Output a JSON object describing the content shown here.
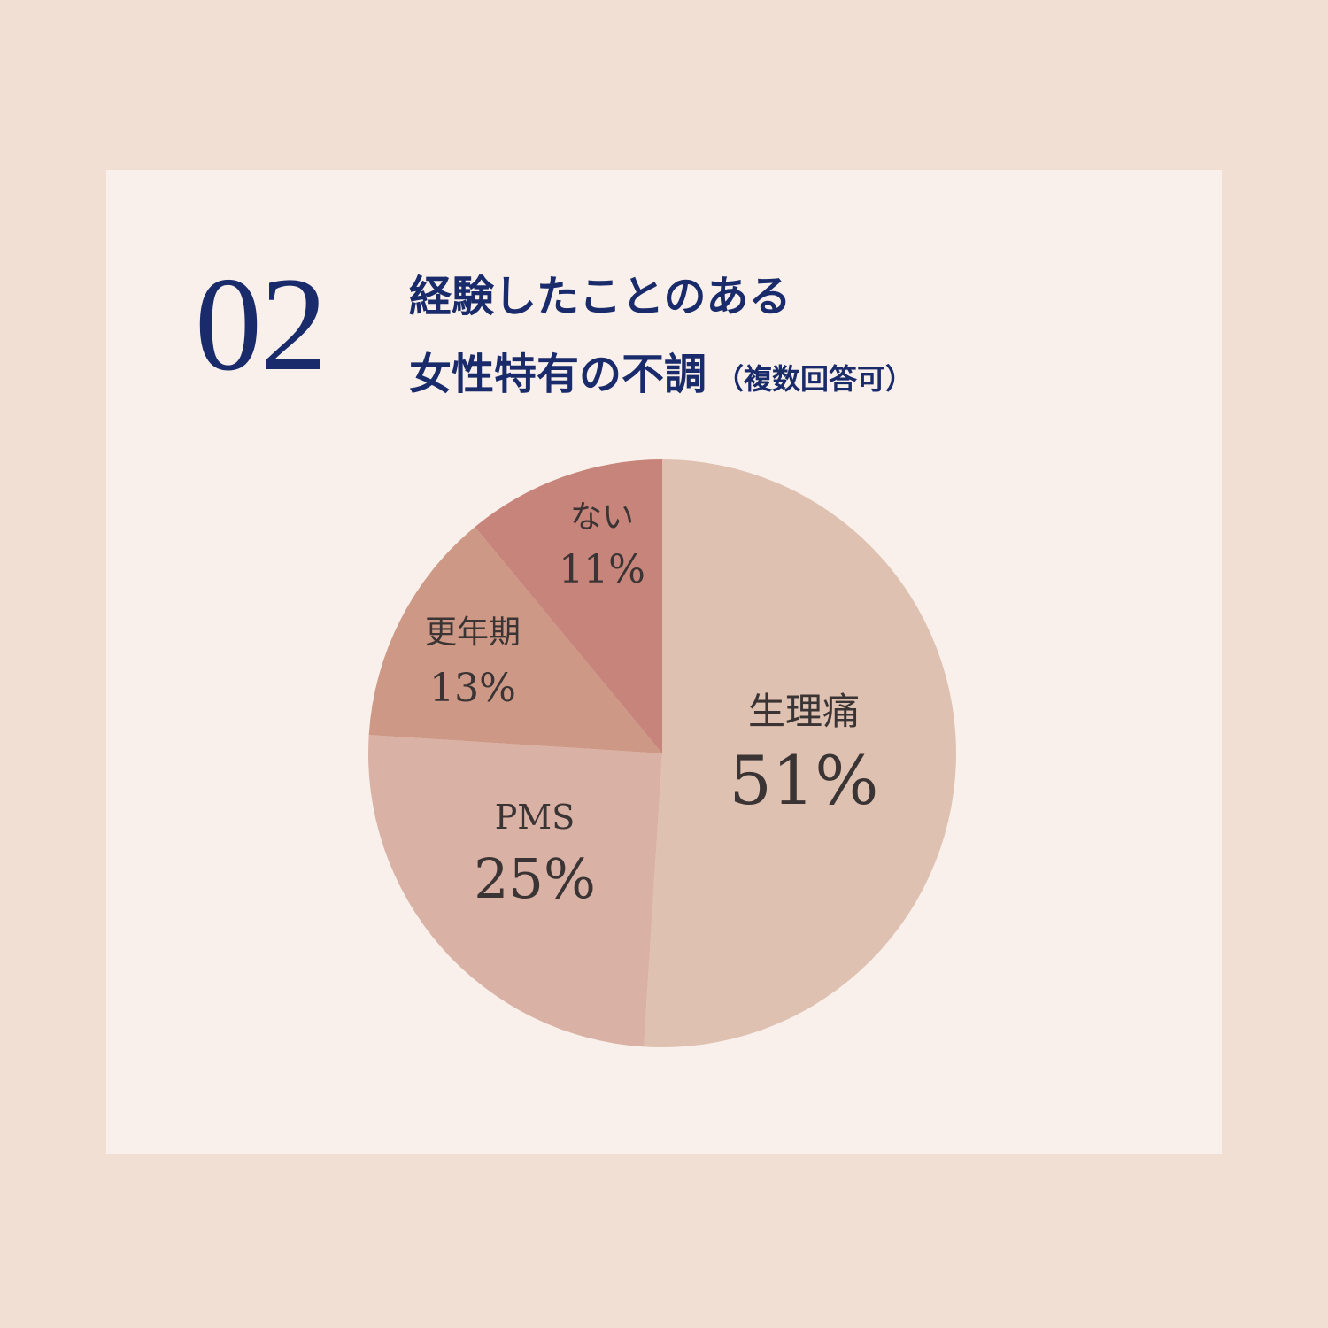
{
  "header": {
    "number": "02",
    "title_line1": "経験したことのある",
    "title_line2": "女性特有の不調",
    "title_note": "（複数回答可）"
  },
  "chart_data": {
    "type": "pie",
    "slices": [
      {
        "label": "生理痛",
        "value": 51,
        "value_label": "51%",
        "color": "#dfc1b1"
      },
      {
        "label": "PMS",
        "value": 25,
        "value_label": "25%",
        "color": "#d9b1a5"
      },
      {
        "label": "更年期",
        "value": 13,
        "value_label": "13%",
        "color": "#cd9986"
      },
      {
        "label": "ない",
        "value": 11,
        "value_label": "11%",
        "color": "#c7847b"
      }
    ],
    "start": "12 o'clock",
    "direction": "clockwise"
  }
}
